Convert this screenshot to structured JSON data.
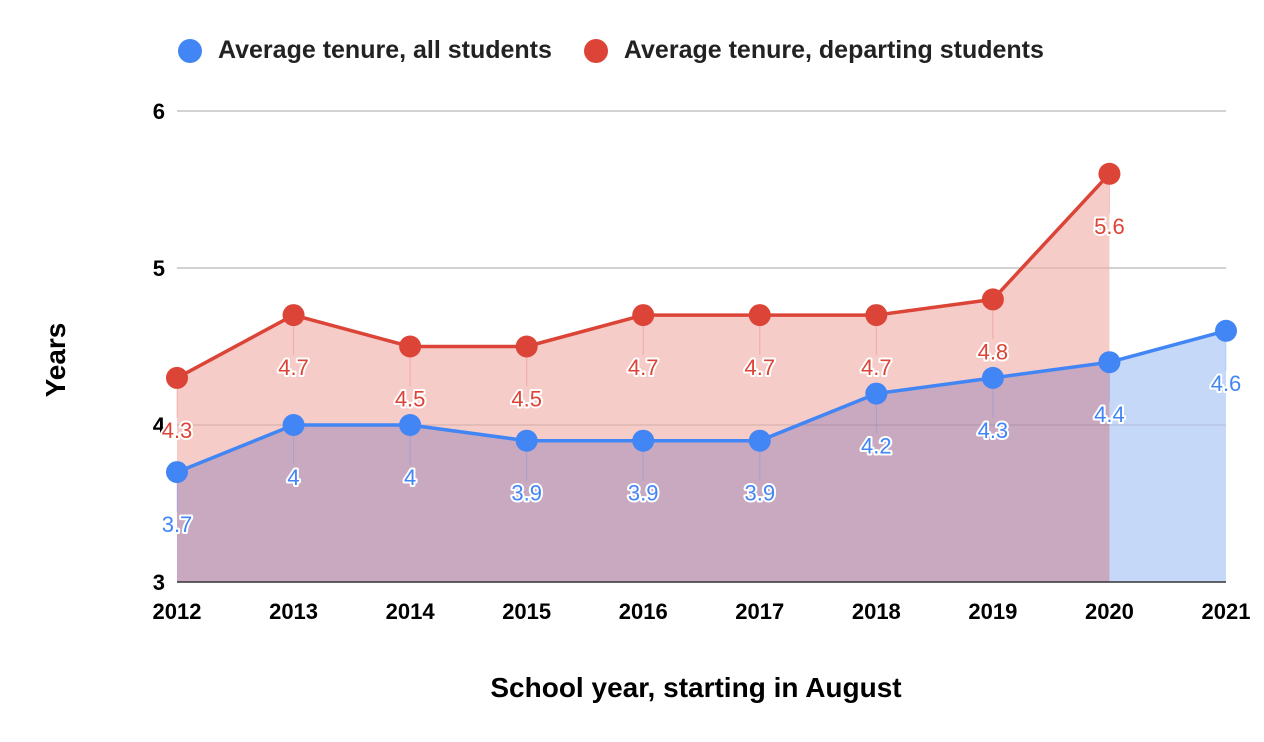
{
  "chart_data": {
    "type": "area",
    "title": "",
    "xlabel": "School year, starting in August",
    "ylabel": "Years",
    "categories": [
      "2012",
      "2013",
      "2014",
      "2015",
      "2016",
      "2017",
      "2018",
      "2019",
      "2020",
      "2021"
    ],
    "ylim": [
      3,
      6
    ],
    "yticks": [
      "3",
      "4",
      "5",
      "6"
    ],
    "grid": true,
    "legend_position": "top",
    "series": [
      {
        "name": "Average tenure, all students",
        "color": "#4285f4",
        "fill": "#c6d8f8",
        "values": [
          3.7,
          4,
          4,
          3.9,
          3.9,
          3.9,
          4.2,
          4.3,
          4.4,
          4.6
        ],
        "labels": [
          "3.7",
          "4",
          "4",
          "3.9",
          "3.9",
          "3.9",
          "4.2",
          "4.3",
          "4.4",
          "4.6"
        ]
      },
      {
        "name": "Average tenure, departing students",
        "color": "#db4437",
        "fill": "#f4c3bf",
        "values": [
          4.3,
          4.7,
          4.5,
          4.5,
          4.7,
          4.7,
          4.7,
          4.8,
          5.6,
          null
        ],
        "labels": [
          "4.3",
          "4.7",
          "4.5",
          "4.5",
          "4.7",
          "4.7",
          "4.7",
          "4.8",
          "5.6",
          ""
        ]
      }
    ]
  }
}
